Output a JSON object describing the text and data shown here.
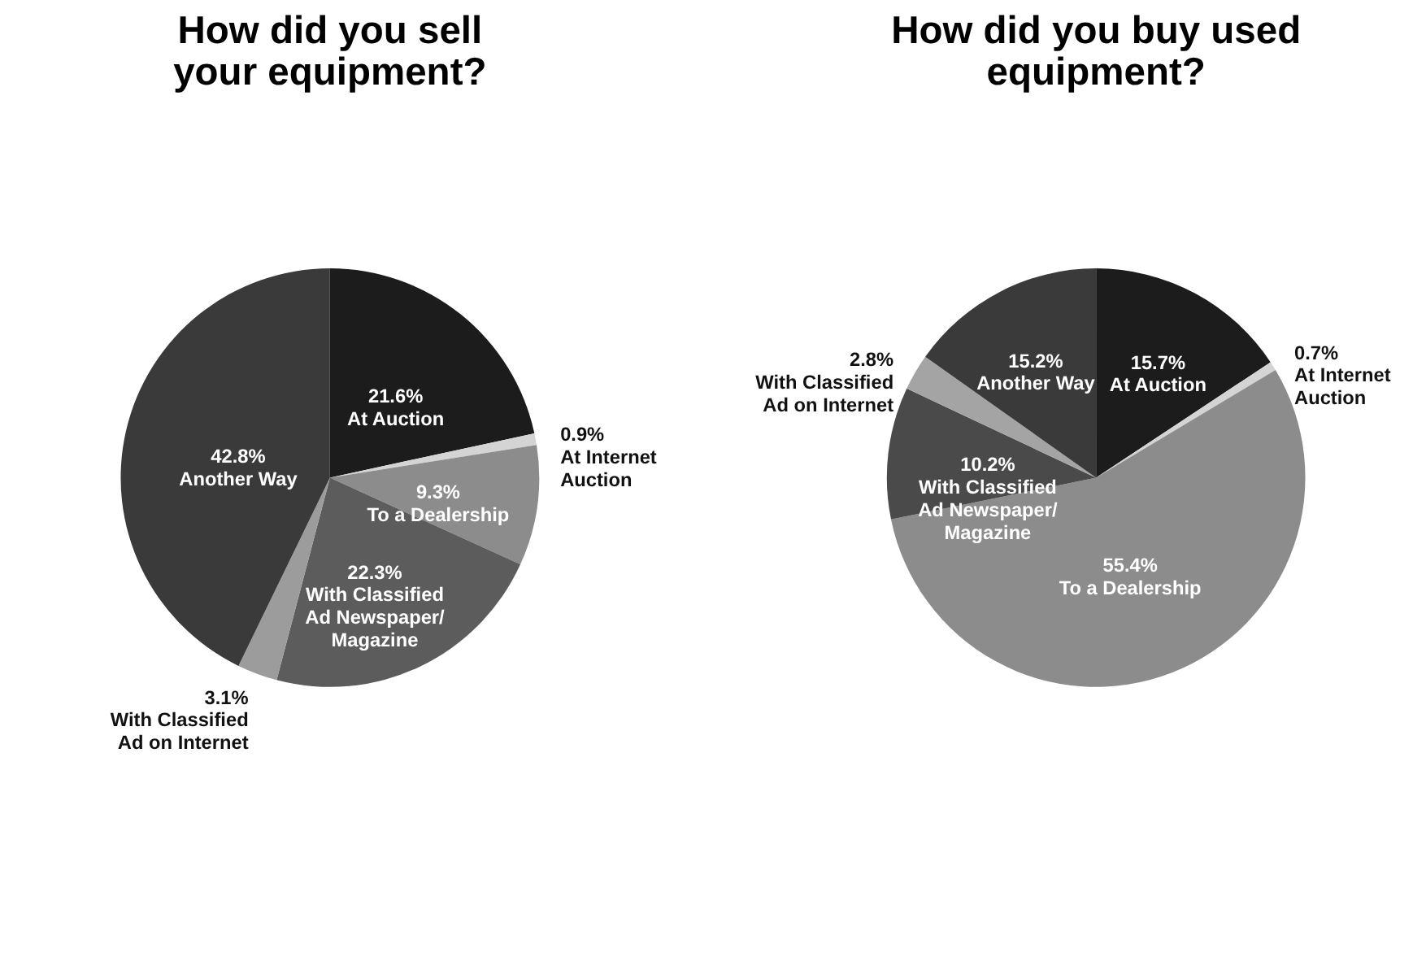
{
  "chart_data": [
    {
      "type": "pie",
      "title": "How did you sell your equipment?",
      "categories": [
        "At Auction",
        "At Internet Auction",
        "To a Dealership",
        "With Classified Ad Newspaper/ Magazine",
        "With Classified Ad on Internet",
        "Another Way"
      ],
      "values": [
        21.6,
        0.9,
        9.3,
        22.3,
        3.1,
        42.8
      ],
      "value_labels": [
        "21.6%",
        "0.9%",
        "9.3%",
        "22.3%",
        "3.1%",
        "42.8%"
      ],
      "colors": [
        "#1c1c1c",
        "#d4d4d4",
        "#8c8c8c",
        "#5c5c5c",
        "#9c9c9c",
        "#3a3a3a"
      ],
      "legend": false
    },
    {
      "type": "pie",
      "title": "How did you buy used equipment?",
      "categories": [
        "At Auction",
        "At Internet Auction",
        "To a Dealership",
        "With Classified Ad Newspaper/Magazine",
        "With Classified Ad on Internet",
        "Another Way"
      ],
      "values": [
        15.7,
        0.7,
        55.4,
        10.2,
        2.8,
        15.2
      ],
      "value_labels": [
        "15.7%",
        "0.7%",
        "55.4%",
        "10.2%",
        "2.8%",
        "15.2%"
      ],
      "colors": [
        "#1c1c1c",
        "#d4d4d4",
        "#8c8c8c",
        "#4a4a4a",
        "#a4a4a4",
        "#3a3a3a"
      ],
      "legend": false
    }
  ]
}
